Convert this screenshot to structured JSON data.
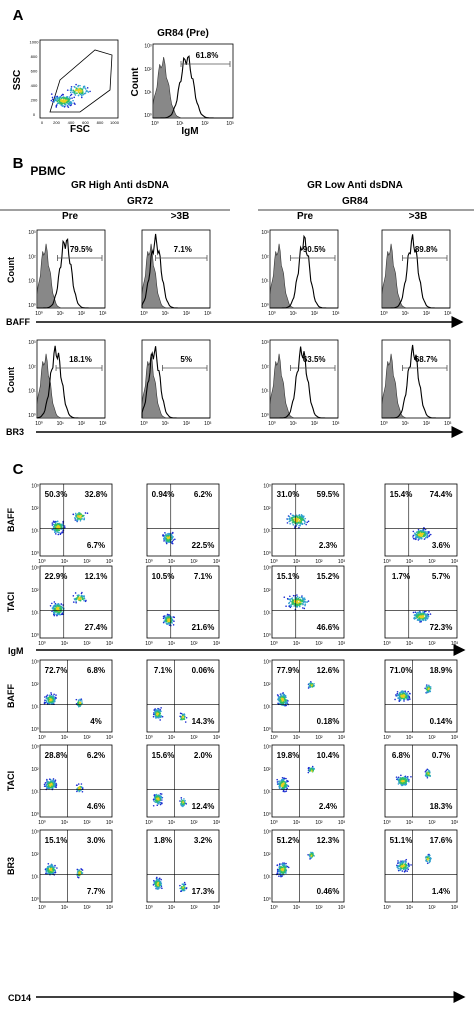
{
  "panel_a": {
    "label": "A",
    "scatter": {
      "y_label": "SSC",
      "x_label": "FSC",
      "ticks": [
        "0",
        "200",
        "400",
        "600",
        "800",
        "1000"
      ]
    },
    "histogram": {
      "title": "GR84 (Pre)",
      "y_label": "Count",
      "x_label": "IgM",
      "gate": "61.8%"
    }
  },
  "log_ticks": [
    "10⁰",
    "10¹",
    "10²",
    "10³"
  ],
  "panel_b": {
    "label": "B",
    "sample": "PBMC",
    "groups": [
      {
        "title": "GR High Anti dsDNA",
        "patient": "GR72"
      },
      {
        "title": "GR Low Anti dsDNA",
        "patient": "GR84"
      }
    ],
    "columns": [
      "Pre",
      ">3B",
      "Pre",
      ">3B"
    ],
    "y_label": "Count",
    "rows": [
      {
        "marker": "BAFF",
        "gates": [
          "79.5%",
          "7.1%",
          "90.5%",
          "89.8%"
        ]
      },
      {
        "marker": "BR3",
        "gates": [
          "18.1%",
          "5%",
          "63.5%",
          "68.7%"
        ]
      }
    ]
  },
  "panel_c": {
    "label": "C",
    "blocks": [
      {
        "x_label": "IgM",
        "rows": [
          {
            "marker": "BAFF",
            "plots": [
              [
                "50.3%",
                "32.8%",
                "6.7%"
              ],
              [
                "0.94%",
                "6.2%",
                "22.5%"
              ],
              [
                "31.0%",
                "59.5%",
                "2.3%"
              ],
              [
                "15.4%",
                "74.4%",
                "3.6%"
              ]
            ]
          },
          {
            "marker": "TACI",
            "plots": [
              [
                "22.9%",
                "12.1%",
                "27.4%"
              ],
              [
                "10.5%",
                "7.1%",
                "21.6%"
              ],
              [
                "15.1%",
                "15.2%",
                "46.6%"
              ],
              [
                "1.7%",
                "5.7%",
                "72.3%"
              ]
            ]
          }
        ]
      },
      {
        "x_label": "CD14",
        "rows": [
          {
            "marker": "BAFF",
            "plots": [
              [
                "72.7%",
                "6.8%",
                "4%"
              ],
              [
                "7.1%",
                "0.06%",
                "14.3%"
              ],
              [
                "77.9%",
                "12.6%",
                "0.18%"
              ],
              [
                "71.0%",
                "18.9%",
                "0.14%"
              ]
            ]
          },
          {
            "marker": "TACI",
            "plots": [
              [
                "28.8%",
                "6.2%",
                "4.6%"
              ],
              [
                "15.6%",
                "2.0%",
                "12.4%"
              ],
              [
                "19.8%",
                "10.4%",
                "2.4%"
              ],
              [
                "6.8%",
                "0.7%",
                "18.3%"
              ]
            ]
          },
          {
            "marker": "BR3",
            "plots": [
              [
                "15.1%",
                "3.0%",
                "7.7%"
              ],
              [
                "1.8%",
                "3.2%",
                "17.3%"
              ],
              [
                "51.2%",
                "12.3%",
                "0.46%"
              ],
              [
                "51.1%",
                "17.6%",
                "1.4%"
              ]
            ]
          }
        ]
      }
    ]
  }
}
